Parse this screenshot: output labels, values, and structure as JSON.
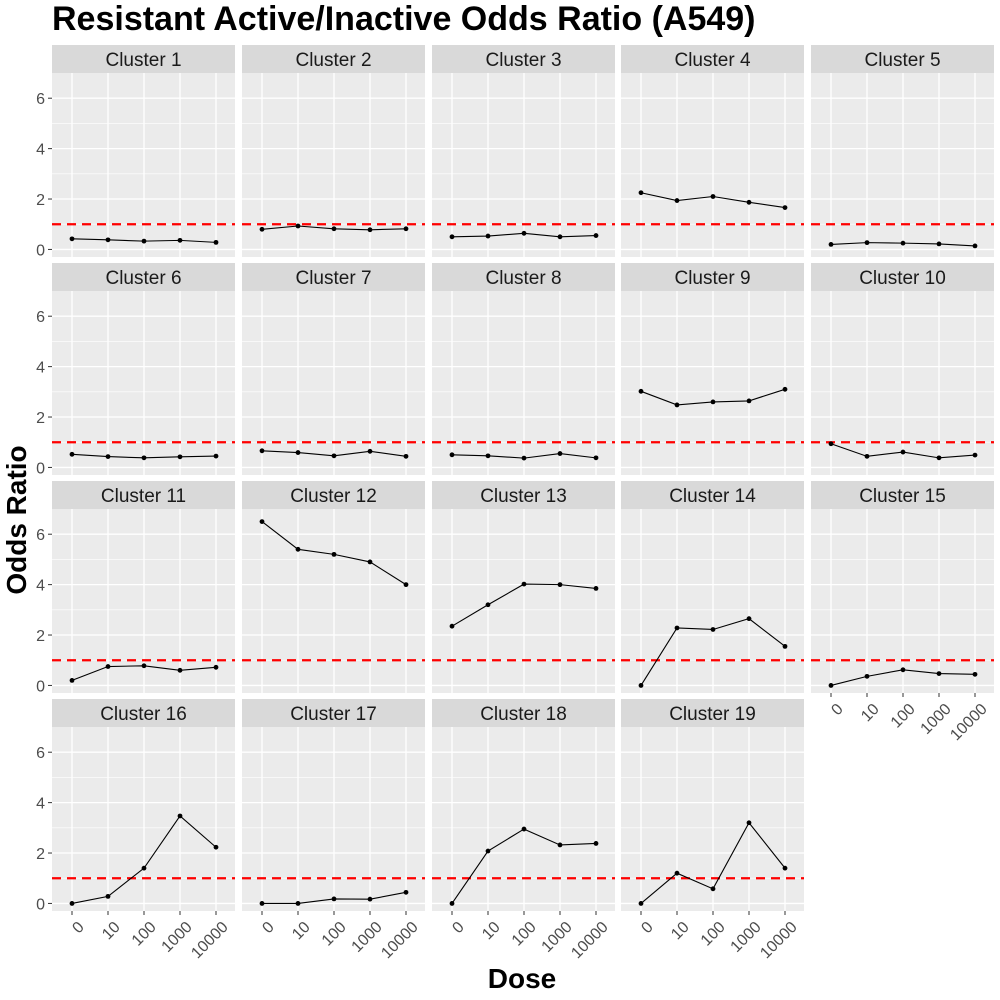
{
  "chart_data": {
    "type": "line",
    "title": "Resistant Active/Inactive Odds Ratio (A549)",
    "xlabel": "Dose",
    "ylabel": "Odds Ratio",
    "x_categories": [
      "0",
      "10",
      "100",
      "1000",
      "10000"
    ],
    "y_ticks": [
      "0",
      "2",
      "4",
      "6"
    ],
    "ylim": [
      -0.3,
      7.0
    ],
    "reference_line": {
      "y": 1,
      "color": "#ff0000",
      "style": "dashed"
    },
    "grid": true,
    "panel_background": "#ebebeb",
    "strip_background": "#d9d9d9",
    "line_color": "#000000",
    "facets": [
      {
        "label": "Cluster 1",
        "values": [
          0.42,
          0.38,
          0.33,
          0.36,
          0.28
        ]
      },
      {
        "label": "Cluster 2",
        "values": [
          0.8,
          0.93,
          0.82,
          0.78,
          0.82
        ]
      },
      {
        "label": "Cluster 3",
        "values": [
          0.5,
          0.53,
          0.64,
          0.5,
          0.55
        ]
      },
      {
        "label": "Cluster 4",
        "values": [
          2.25,
          1.94,
          2.1,
          1.87,
          1.66
        ]
      },
      {
        "label": "Cluster 5",
        "values": [
          0.2,
          0.27,
          0.25,
          0.22,
          0.14
        ]
      },
      {
        "label": "Cluster 6",
        "values": [
          0.52,
          0.43,
          0.38,
          0.42,
          0.45
        ]
      },
      {
        "label": "Cluster 7",
        "values": [
          0.66,
          0.59,
          0.46,
          0.64,
          0.44
        ]
      },
      {
        "label": "Cluster 8",
        "values": [
          0.5,
          0.46,
          0.37,
          0.55,
          0.38
        ]
      },
      {
        "label": "Cluster 9",
        "values": [
          3.02,
          2.48,
          2.6,
          2.64,
          3.1
        ]
      },
      {
        "label": "Cluster 10",
        "values": [
          0.94,
          0.44,
          0.61,
          0.38,
          0.49
        ]
      },
      {
        "label": "Cluster 11",
        "values": [
          0.2,
          0.75,
          0.78,
          0.6,
          0.72
        ]
      },
      {
        "label": "Cluster 12",
        "values": [
          6.5,
          5.4,
          5.2,
          4.9,
          4.0
        ]
      },
      {
        "label": "Cluster 13",
        "values": [
          2.35,
          3.2,
          4.02,
          4.0,
          3.85
        ]
      },
      {
        "label": "Cluster 14",
        "values": [
          0.0,
          2.28,
          2.22,
          2.65,
          1.55
        ]
      },
      {
        "label": "Cluster 15",
        "values": [
          0.0,
          0.36,
          0.62,
          0.47,
          0.44
        ]
      },
      {
        "label": "Cluster 16",
        "values": [
          0.0,
          0.28,
          1.4,
          3.47,
          2.23
        ]
      },
      {
        "label": "Cluster 17",
        "values": [
          0.0,
          0.0,
          0.18,
          0.17,
          0.44
        ]
      },
      {
        "label": "Cluster 18",
        "values": [
          0.0,
          2.08,
          2.95,
          2.32,
          2.38
        ]
      },
      {
        "label": "Cluster 19",
        "values": [
          0.0,
          1.2,
          0.58,
          3.2,
          1.4
        ]
      }
    ]
  }
}
